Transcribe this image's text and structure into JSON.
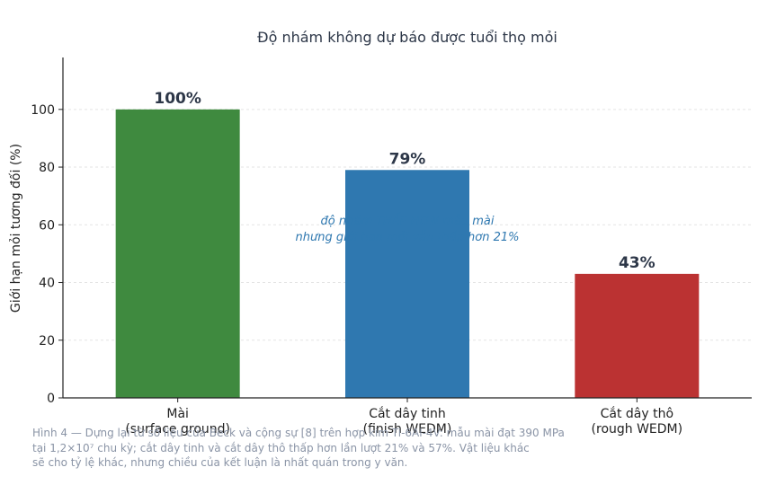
{
  "chart_data": {
    "type": "bar",
    "title": "Độ nhám không dự báo được tuổi thọ mỏi",
    "ylabel": "Giới hạn mỏi tương đối (%)",
    "xlabel": "",
    "ylim": [
      0,
      118
    ],
    "yticks": [
      0,
      20,
      40,
      60,
      80,
      100
    ],
    "grid": true,
    "categories": [
      [
        "Mài",
        "(surface ground)"
      ],
      [
        "Cắt dây tinh",
        "(finish WEDM)"
      ],
      [
        "Cắt dây thô",
        "(rough WEDM)"
      ]
    ],
    "values": [
      100,
      79,
      43
    ],
    "value_labels": [
      "100%",
      "79%",
      "43%"
    ],
    "colors": [
      "#3f8a3f",
      "#2f78b0",
      "#bb3232"
    ],
    "annotation": {
      "lines": [
        "độ nhám THẤP HƠN mẫu mài",
        "nhưng giới hạn mỏi vẫn thấp hơn 21%"
      ],
      "color": "#2f78b0"
    }
  },
  "caption": {
    "lines": [
      "Hình 4 — Dựng lại từ số liệu của Beck và cộng sự [8] trên hợp kim Ti-6Al-4V: mẫu mài đạt 390 MPa",
      "tại 1,2×10⁷ chu kỳ; cắt dây tinh và cắt dây thô thấp hơn lần lượt 21% và 57%. Vật liệu khác",
      "sẽ cho tỷ lệ khác, nhưng chiều của kết luận là nhất quán trong y văn."
    ]
  }
}
